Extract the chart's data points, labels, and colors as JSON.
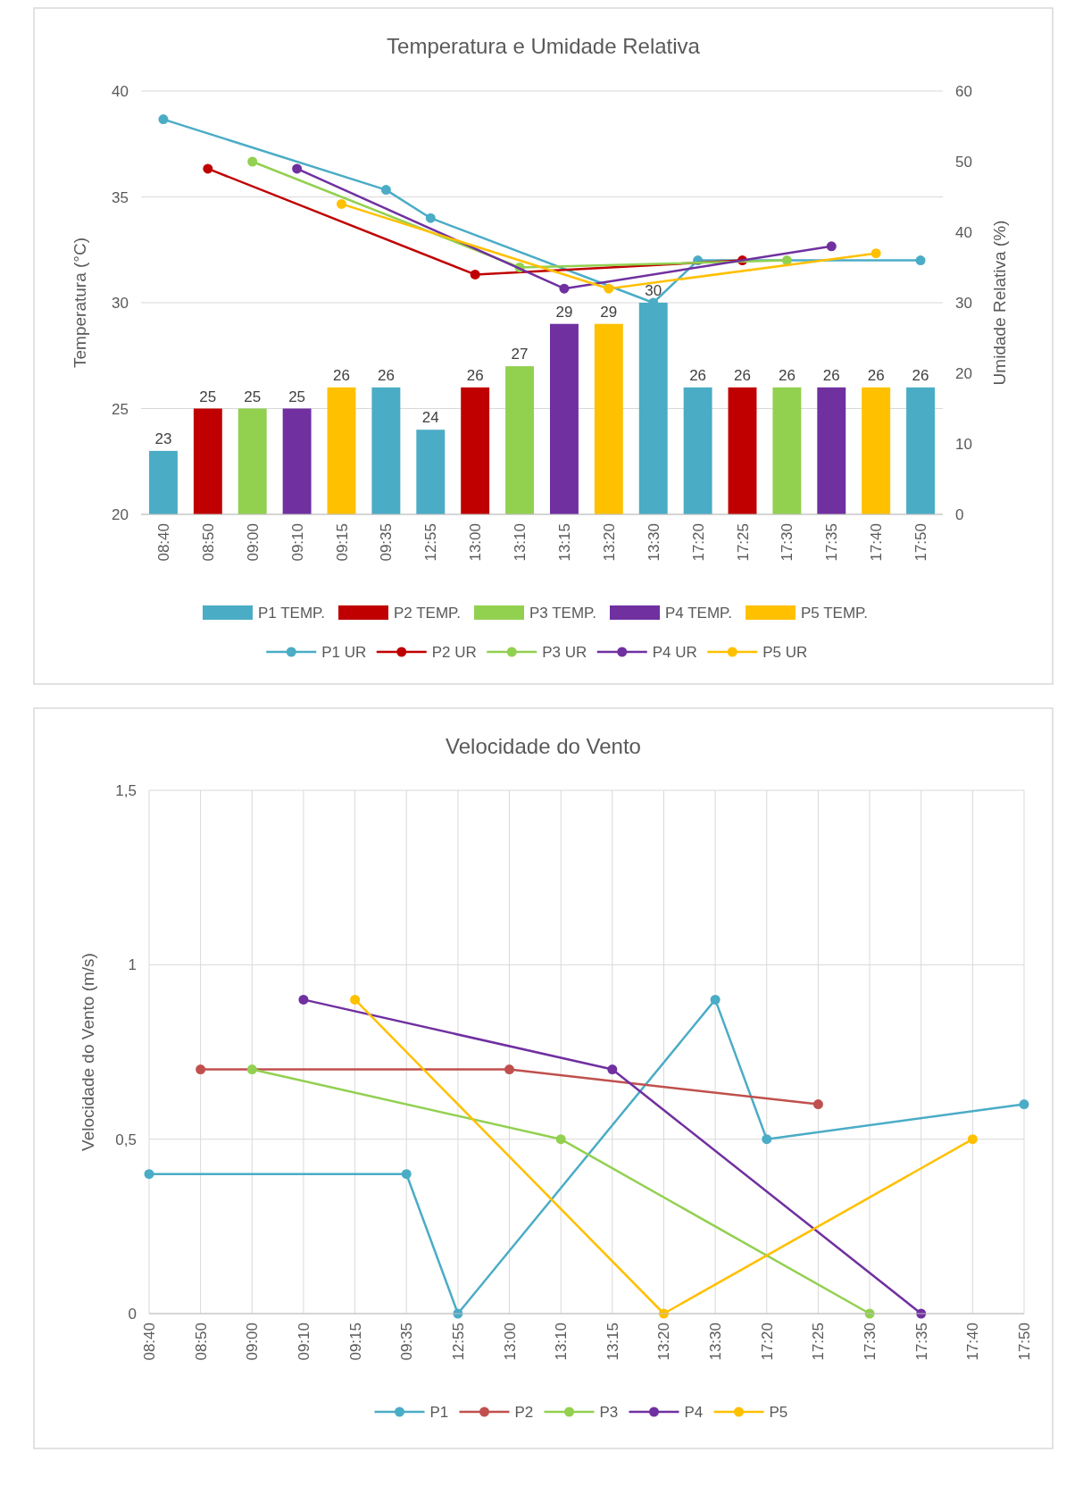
{
  "chart_data": [
    {
      "type": "bar",
      "title": "Temperatura e Umidade Relativa",
      "ylabel": "Temperatura (°C)",
      "y2label": "Umidade Relativa (%)",
      "categories": [
        "08:40",
        "08:50",
        "09:00",
        "09:10",
        "09:15",
        "09:35",
        "12:55",
        "13:00",
        "13:10",
        "13:15",
        "13:20",
        "13:30",
        "17:20",
        "17:25",
        "17:30",
        "17:35",
        "17:40",
        "17:50"
      ],
      "ylim": [
        20,
        40
      ],
      "yticks": [
        20,
        25,
        30,
        35,
        40
      ],
      "y2lim": [
        0,
        60
      ],
      "y2ticks": [
        0,
        10,
        20,
        30,
        40,
        50,
        60
      ],
      "grid": "y",
      "legend": "bottom",
      "marker": "circle",
      "series": [
        {
          "name": "P1 TEMP.",
          "type": "bar",
          "color": "#4bacc6",
          "values": [
            23,
            null,
            null,
            null,
            null,
            26,
            24,
            null,
            null,
            null,
            null,
            30,
            26,
            null,
            null,
            null,
            null,
            26
          ],
          "value_labels": [
            "23",
            null,
            null,
            null,
            null,
            "26",
            "24",
            null,
            null,
            null,
            null,
            "30",
            "26",
            null,
            null,
            null,
            null,
            "26"
          ]
        },
        {
          "name": "P2 TEMP.",
          "type": "bar",
          "color": "#c00000",
          "values": [
            null,
            25,
            null,
            null,
            null,
            null,
            null,
            26,
            null,
            null,
            null,
            null,
            null,
            26,
            null,
            null,
            null,
            null
          ],
          "value_labels": [
            null,
            "25",
            null,
            null,
            null,
            null,
            null,
            "26",
            null,
            null,
            null,
            null,
            null,
            "26",
            null,
            null,
            null,
            null
          ]
        },
        {
          "name": "P3 TEMP.",
          "type": "bar",
          "color": "#92d050",
          "values": [
            null,
            null,
            25,
            null,
            null,
            null,
            null,
            null,
            27,
            null,
            null,
            null,
            null,
            null,
            26,
            null,
            null,
            null
          ],
          "value_labels": [
            null,
            null,
            "25",
            null,
            null,
            null,
            null,
            null,
            "27",
            null,
            null,
            null,
            null,
            null,
            "26",
            null,
            null,
            null
          ]
        },
        {
          "name": "P4 TEMP.",
          "type": "bar",
          "color": "#7030a0",
          "values": [
            null,
            null,
            null,
            25,
            null,
            null,
            null,
            null,
            null,
            29,
            null,
            null,
            null,
            null,
            null,
            26,
            null,
            null
          ],
          "value_labels": [
            null,
            null,
            null,
            "25",
            null,
            null,
            null,
            null,
            null,
            "29",
            null,
            null,
            null,
            null,
            null,
            "26",
            null,
            null
          ]
        },
        {
          "name": "P5 TEMP.",
          "type": "bar",
          "color": "#ffc000",
          "values": [
            null,
            null,
            null,
            null,
            26,
            null,
            null,
            null,
            null,
            null,
            29,
            null,
            null,
            null,
            null,
            null,
            26,
            null
          ],
          "value_labels": [
            null,
            null,
            null,
            null,
            "26",
            null,
            null,
            null,
            null,
            null,
            "29",
            null,
            null,
            null,
            null,
            null,
            "26",
            null
          ]
        },
        {
          "name": "P1 UR",
          "type": "line",
          "axis": "y2",
          "color": "#4bacc6",
          "values": [
            56,
            null,
            null,
            null,
            null,
            46,
            42,
            null,
            null,
            null,
            null,
            30,
            36,
            null,
            null,
            null,
            null,
            36
          ]
        },
        {
          "name": "P2 UR",
          "type": "line",
          "axis": "y2",
          "color": "#c00000",
          "values": [
            null,
            49,
            null,
            null,
            null,
            null,
            null,
            34,
            null,
            null,
            null,
            null,
            null,
            36,
            null,
            null,
            null,
            null
          ]
        },
        {
          "name": "P3 UR",
          "type": "line",
          "axis": "y2",
          "color": "#92d050",
          "values": [
            null,
            null,
            50,
            null,
            null,
            null,
            null,
            null,
            35,
            null,
            null,
            null,
            null,
            null,
            36,
            null,
            null,
            null
          ]
        },
        {
          "name": "P4 UR",
          "type": "line",
          "axis": "y2",
          "color": "#7030a0",
          "values": [
            null,
            null,
            null,
            49,
            null,
            null,
            null,
            null,
            null,
            32,
            null,
            null,
            null,
            null,
            null,
            38,
            null,
            null
          ]
        },
        {
          "name": "P5 UR",
          "type": "line",
          "axis": "y2",
          "color": "#ffc000",
          "values": [
            null,
            null,
            null,
            null,
            44,
            null,
            null,
            null,
            null,
            null,
            32,
            null,
            null,
            null,
            null,
            null,
            37,
            null
          ]
        }
      ]
    },
    {
      "type": "line",
      "title": "Velocidade do Vento",
      "ylabel": "Velocidade do Vento (m/s)",
      "categories": [
        "08:40",
        "08:50",
        "09:00",
        "09:10",
        "09:15",
        "09:35",
        "12:55",
        "13:00",
        "13:10",
        "13:15",
        "13:20",
        "13:30",
        "17:20",
        "17:25",
        "17:30",
        "17:35",
        "17:40",
        "17:50"
      ],
      "ylim": [
        0,
        1.5
      ],
      "yticks": [
        0,
        {
          "value": 0.5,
          "label": "0,5"
        },
        1,
        {
          "value": 1.5,
          "label": "1,5"
        }
      ],
      "grid": true,
      "legend": "bottom",
      "marker": "circle",
      "series": [
        {
          "name": "P1",
          "color": "#4bacc6",
          "values": [
            0.4,
            null,
            null,
            null,
            null,
            0.4,
            0,
            null,
            null,
            null,
            null,
            0.9,
            0.5,
            null,
            null,
            null,
            null,
            0.6
          ]
        },
        {
          "name": "P2",
          "color": "#c0504d",
          "values": [
            null,
            0.7,
            null,
            null,
            null,
            null,
            null,
            0.7,
            null,
            null,
            null,
            null,
            null,
            0.6,
            null,
            null,
            null,
            null
          ]
        },
        {
          "name": "P3",
          "color": "#92d050",
          "values": [
            null,
            null,
            0.7,
            null,
            null,
            null,
            null,
            null,
            0.5,
            null,
            null,
            null,
            null,
            null,
            0,
            null,
            null,
            null
          ]
        },
        {
          "name": "P4",
          "color": "#7030a0",
          "values": [
            null,
            null,
            null,
            0.9,
            null,
            null,
            null,
            null,
            null,
            0.7,
            null,
            null,
            null,
            null,
            null,
            0,
            null,
            null
          ]
        },
        {
          "name": "P5",
          "color": "#ffc000",
          "values": [
            null,
            null,
            null,
            null,
            0.9,
            null,
            null,
            null,
            null,
            null,
            0,
            null,
            null,
            null,
            null,
            null,
            0.5,
            null
          ]
        }
      ]
    }
  ]
}
